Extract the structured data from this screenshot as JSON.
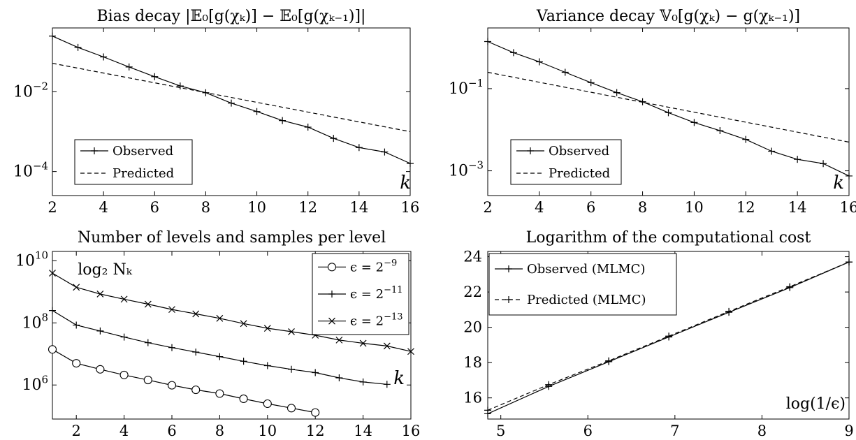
{
  "chart_data": [
    {
      "type": "line",
      "title": "Bias decay |𝔼₀[g(χₖ)] − 𝔼₀[g(χₖ₋₁)]|",
      "xlabel": "k",
      "ylabel": "",
      "yscale": "log",
      "xlim": [
        2,
        16
      ],
      "ylim": [
        2.5e-05,
        0.4
      ],
      "xticks": [
        2,
        4,
        6,
        8,
        10,
        12,
        14,
        16
      ],
      "yticks": [
        {
          "value": 0.01,
          "base": "10",
          "exp": "−2"
        },
        {
          "value": 0.0001,
          "base": "10",
          "exp": "−4"
        }
      ],
      "legend_position": "bottom-left",
      "series": [
        {
          "name": "Observed",
          "style": "solid",
          "marker": "plus",
          "x": [
            2,
            3,
            4,
            5,
            6,
            7,
            8,
            9,
            10,
            11,
            12,
            13,
            14,
            15,
            16
          ],
          "y": [
            0.25,
            0.13,
            0.075,
            0.042,
            0.024,
            0.014,
            0.0095,
            0.0052,
            0.0032,
            0.0019,
            0.0013,
            0.00068,
            0.0004,
            0.00031,
            0.00016
          ]
        },
        {
          "name": "Predicted",
          "style": "dashed",
          "marker": "none",
          "x": [
            2,
            16
          ],
          "y": [
            0.052,
            0.001
          ]
        }
      ]
    },
    {
      "type": "line",
      "title": "Variance decay 𝕍₀[g(χₖ) − g(χₖ₋₁)]",
      "xlabel": "k",
      "ylabel": "",
      "yscale": "log",
      "xlim": [
        2,
        16
      ],
      "ylim": [
        0.00025,
        3
      ],
      "xticks": [
        2,
        4,
        6,
        8,
        10,
        12,
        14,
        16
      ],
      "yticks": [
        {
          "value": 0.1,
          "base": "10",
          "exp": "−1"
        },
        {
          "value": 0.001,
          "base": "10",
          "exp": "−3"
        }
      ],
      "legend_position": "bottom-left",
      "series": [
        {
          "name": "Observed",
          "style": "solid",
          "marker": "plus",
          "x": [
            2,
            3,
            4,
            5,
            6,
            7,
            8,
            9,
            10,
            11,
            12,
            13,
            14,
            15,
            16
          ],
          "y": [
            1.4,
            0.75,
            0.45,
            0.25,
            0.14,
            0.08,
            0.048,
            0.026,
            0.015,
            0.0095,
            0.0058,
            0.003,
            0.0019,
            0.0015,
            0.00075
          ]
        },
        {
          "name": "Predicted",
          "style": "dashed",
          "marker": "none",
          "x": [
            2,
            16
          ],
          "y": [
            0.25,
            0.005
          ]
        }
      ]
    },
    {
      "type": "line",
      "title": "Number of levels and samples per level",
      "xlabel": "k",
      "ylabel": "log₂ Nₖ",
      "yscale": "log",
      "xlim": [
        1,
        16
      ],
      "ylim": [
        80000,
        20000000000
      ],
      "xticks": [
        2,
        4,
        6,
        8,
        10,
        12,
        14,
        16
      ],
      "yticks": [
        {
          "value": 10000000000,
          "base": "10",
          "exp": "10"
        },
        {
          "value": 100000000,
          "base": "10",
          "exp": "8"
        },
        {
          "value": 1000000,
          "base": "10",
          "exp": "6"
        }
      ],
      "legend_position": "top-right",
      "series": [
        {
          "name": "ϵ = 2",
          "name_exp": "−9",
          "style": "solid",
          "marker": "circle",
          "x": [
            1,
            2,
            3,
            4,
            5,
            6,
            7,
            8,
            9,
            10,
            11,
            12
          ],
          "y": [
            14000000,
            5000000,
            3200000,
            2100000,
            1450000,
            980000,
            700000,
            530000,
            360000,
            250000,
            180000,
            130000
          ]
        },
        {
          "name": "ϵ = 2",
          "name_exp": "−11",
          "style": "solid",
          "marker": "plus",
          "x": [
            1,
            2,
            3,
            4,
            5,
            6,
            7,
            8,
            9,
            10,
            11,
            12,
            13,
            14,
            15
          ],
          "y": [
            250000000,
            85000000,
            55000000,
            35000000,
            23000000,
            16000000,
            11500000,
            8200000,
            5800000,
            4200000,
            3200000,
            2500000,
            1700000,
            1250000,
            1050000
          ]
        },
        {
          "name": "ϵ = 2",
          "name_exp": "−13",
          "style": "solid",
          "marker": "cross",
          "x": [
            1,
            2,
            3,
            4,
            5,
            6,
            7,
            8,
            9,
            10,
            11,
            12,
            13,
            14,
            15,
            16
          ],
          "y": [
            4000000000,
            1400000000,
            850000000,
            580000000,
            400000000,
            270000000,
            195000000,
            140000000,
            95000000,
            67000000,
            52000000,
            40000000,
            28000000,
            22000000,
            18000000,
            12000000
          ]
        }
      ]
    },
    {
      "type": "line",
      "title": "Logarithm of the computational cost",
      "xlabel": "log(1/ϵ)",
      "ylabel": "",
      "yscale": "linear",
      "xlim": [
        4.85,
        9.0
      ],
      "ylim": [
        14.8,
        24.3
      ],
      "xticks": [
        5,
        6,
        7,
        8,
        9
      ],
      "yticks": [
        16,
        18,
        20,
        22,
        24
      ],
      "legend_position": "top-left",
      "series": [
        {
          "name": "Observed (MLMC)",
          "style": "solid",
          "marker": "plus",
          "x": [
            4.85,
            5.55,
            6.24,
            6.93,
            7.62,
            8.32,
            9.0
          ],
          "y": [
            15.1,
            16.65,
            18.05,
            19.45,
            20.85,
            22.25,
            23.7
          ]
        },
        {
          "name": "Predicted (MLMC)",
          "style": "dashed",
          "marker": "plus",
          "x": [
            4.85,
            5.55,
            6.24,
            6.93,
            7.62,
            8.32,
            9.0
          ],
          "y": [
            15.3,
            16.75,
            18.1,
            19.5,
            20.9,
            22.3,
            23.7
          ]
        }
      ]
    }
  ]
}
